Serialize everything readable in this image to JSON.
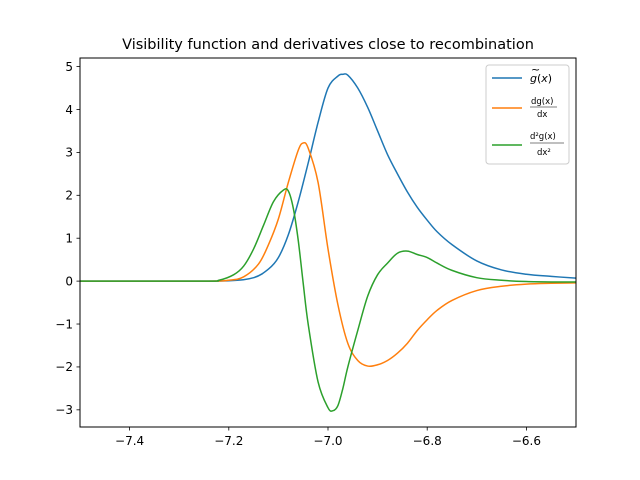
{
  "chart_data": {
    "type": "line",
    "title": "Visibility function and derivatives close to recombination",
    "xlabel": "",
    "ylabel": "",
    "xlim": [
      -7.5,
      -6.5
    ],
    "ylim": [
      -3.4,
      5.2
    ],
    "x_ticks": [
      -7.4,
      -7.2,
      -7.0,
      -6.8,
      -6.6
    ],
    "x_tick_labels": [
      "−7.4",
      "−7.2",
      "−7.0",
      "−6.8",
      "−6.6"
    ],
    "y_ticks": [
      -3,
      -2,
      -1,
      0,
      1,
      2,
      3,
      4,
      5
    ],
    "y_tick_labels": [
      "−3",
      "−2",
      "−1",
      "0",
      "1",
      "2",
      "3",
      "4",
      "5"
    ],
    "grid": false,
    "legend_position": "top-right",
    "series": [
      {
        "name": "g̃(x)",
        "color": "#1f77b4",
        "x": [
          -7.5,
          -7.3,
          -7.2,
          -7.15,
          -7.12,
          -7.1,
          -7.08,
          -7.06,
          -7.04,
          -7.02,
          -7.0,
          -6.98,
          -6.97,
          -6.96,
          -6.94,
          -6.92,
          -6.9,
          -6.88,
          -6.86,
          -6.84,
          -6.82,
          -6.8,
          -6.78,
          -6.75,
          -6.7,
          -6.65,
          -6.6,
          -6.55,
          -6.5
        ],
        "y": [
          0,
          0,
          0.01,
          0.08,
          0.28,
          0.55,
          1.08,
          1.85,
          2.75,
          3.7,
          4.5,
          4.78,
          4.82,
          4.8,
          4.5,
          4.05,
          3.5,
          2.95,
          2.5,
          2.08,
          1.72,
          1.42,
          1.15,
          0.85,
          0.47,
          0.26,
          0.16,
          0.11,
          0.07
        ]
      },
      {
        "name": "dg̃(x)/dx",
        "color": "#ff7f0e",
        "x": [
          -7.5,
          -7.25,
          -7.2,
          -7.17,
          -7.14,
          -7.12,
          -7.1,
          -7.08,
          -7.06,
          -7.05,
          -7.04,
          -7.02,
          -7.0,
          -6.98,
          -6.96,
          -6.94,
          -6.92,
          -6.9,
          -6.88,
          -6.86,
          -6.84,
          -6.82,
          -6.8,
          -6.78,
          -6.75,
          -6.7,
          -6.65,
          -6.6,
          -6.55,
          -6.5
        ],
        "y": [
          0,
          0,
          0.02,
          0.1,
          0.4,
          0.85,
          1.45,
          2.3,
          3.05,
          3.22,
          3.1,
          2.3,
          0.75,
          -0.55,
          -1.45,
          -1.85,
          -1.98,
          -1.95,
          -1.85,
          -1.68,
          -1.45,
          -1.15,
          -0.9,
          -0.68,
          -0.45,
          -0.22,
          -0.12,
          -0.07,
          -0.05,
          -0.04
        ]
      },
      {
        "name": "d²g̃(x)/dx²",
        "color": "#2ca02c",
        "x": [
          -7.5,
          -7.25,
          -7.22,
          -7.19,
          -7.17,
          -7.15,
          -7.13,
          -7.11,
          -7.09,
          -7.08,
          -7.07,
          -7.06,
          -7.05,
          -7.04,
          -7.02,
          -7.0,
          -6.99,
          -6.98,
          -6.97,
          -6.96,
          -6.94,
          -6.92,
          -6.9,
          -6.88,
          -6.86,
          -6.84,
          -6.82,
          -6.8,
          -6.78,
          -6.75,
          -6.7,
          -6.65,
          -6.6,
          -6.55,
          -6.5
        ],
        "y": [
          0,
          0,
          0.02,
          0.15,
          0.35,
          0.75,
          1.3,
          1.85,
          2.12,
          2.1,
          1.7,
          0.95,
          -0.05,
          -1.0,
          -2.35,
          -2.95,
          -3.02,
          -2.9,
          -2.5,
          -2.0,
          -1.15,
          -0.35,
          0.15,
          0.42,
          0.65,
          0.7,
          0.62,
          0.55,
          0.42,
          0.25,
          0.08,
          0.02,
          -0.01,
          -0.02,
          -0.02
        ]
      }
    ]
  }
}
